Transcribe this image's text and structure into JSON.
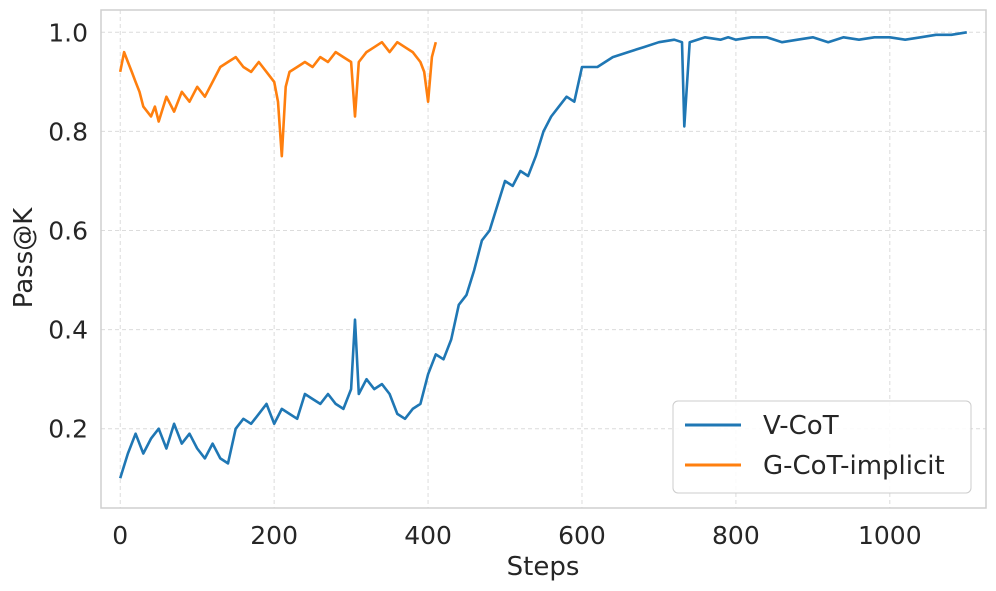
{
  "chart_data": {
    "type": "line",
    "title": "",
    "xlabel": "Steps",
    "ylabel": "Pass@K",
    "xlim": [
      -25,
      1125
    ],
    "ylim": [
      0.04,
      1.045
    ],
    "xticks": [
      0,
      200,
      400,
      600,
      800,
      1000
    ],
    "xtick_labels": [
      "0",
      "200",
      "400",
      "600",
      "800",
      "1000"
    ],
    "yticks": [
      0.2,
      0.4,
      0.6,
      0.8,
      1.0
    ],
    "ytick_labels": [
      "0.2",
      "0.4",
      "0.6",
      "0.8",
      "1.0"
    ],
    "grid": true,
    "legend_position": "lower-right",
    "colors": {
      "v_cot": "#1f77b4",
      "g_cot": "#ff7f0e"
    },
    "series": [
      {
        "name": "V-CoT",
        "color": "#1f77b4",
        "x": [
          0,
          10,
          20,
          30,
          40,
          50,
          60,
          70,
          80,
          90,
          100,
          110,
          120,
          130,
          140,
          150,
          160,
          170,
          180,
          190,
          200,
          210,
          220,
          230,
          240,
          250,
          260,
          270,
          280,
          290,
          300,
          305,
          310,
          320,
          330,
          340,
          350,
          360,
          370,
          380,
          390,
          400,
          410,
          420,
          430,
          440,
          450,
          460,
          470,
          480,
          490,
          500,
          510,
          520,
          530,
          540,
          550,
          560,
          570,
          580,
          590,
          600,
          620,
          640,
          660,
          680,
          700,
          720,
          730,
          733,
          740,
          760,
          780,
          790,
          800,
          820,
          840,
          860,
          880,
          900,
          920,
          940,
          960,
          980,
          1000,
          1020,
          1040,
          1060,
          1080,
          1100
        ],
        "values": [
          0.1,
          0.15,
          0.19,
          0.15,
          0.18,
          0.2,
          0.16,
          0.21,
          0.17,
          0.19,
          0.16,
          0.14,
          0.17,
          0.14,
          0.13,
          0.2,
          0.22,
          0.21,
          0.23,
          0.25,
          0.21,
          0.24,
          0.23,
          0.22,
          0.27,
          0.26,
          0.25,
          0.27,
          0.25,
          0.24,
          0.28,
          0.42,
          0.27,
          0.3,
          0.28,
          0.29,
          0.27,
          0.23,
          0.22,
          0.24,
          0.25,
          0.31,
          0.35,
          0.34,
          0.38,
          0.45,
          0.47,
          0.52,
          0.58,
          0.6,
          0.65,
          0.7,
          0.69,
          0.72,
          0.71,
          0.75,
          0.8,
          0.83,
          0.85,
          0.87,
          0.86,
          0.93,
          0.93,
          0.95,
          0.96,
          0.97,
          0.98,
          0.985,
          0.98,
          0.81,
          0.98,
          0.99,
          0.985,
          0.99,
          0.985,
          0.99,
          0.99,
          0.98,
          0.985,
          0.99,
          0.98,
          0.99,
          0.985,
          0.99,
          0.99,
          0.985,
          0.99,
          0.995,
          0.995,
          1.0
        ]
      },
      {
        "name": "G-CoT-implicit",
        "color": "#ff7f0e",
        "x": [
          0,
          5,
          10,
          15,
          20,
          25,
          30,
          35,
          40,
          45,
          50,
          60,
          70,
          80,
          90,
          100,
          110,
          120,
          130,
          140,
          150,
          160,
          170,
          180,
          190,
          200,
          205,
          210,
          215,
          220,
          230,
          240,
          250,
          260,
          270,
          280,
          290,
          300,
          305,
          310,
          320,
          330,
          340,
          350,
          360,
          370,
          380,
          390,
          395,
          400,
          405,
          410
        ],
        "values": [
          0.92,
          0.96,
          0.94,
          0.92,
          0.9,
          0.88,
          0.85,
          0.84,
          0.83,
          0.85,
          0.82,
          0.87,
          0.84,
          0.88,
          0.86,
          0.89,
          0.87,
          0.9,
          0.93,
          0.94,
          0.95,
          0.93,
          0.92,
          0.94,
          0.92,
          0.9,
          0.86,
          0.75,
          0.89,
          0.92,
          0.93,
          0.94,
          0.93,
          0.95,
          0.94,
          0.96,
          0.95,
          0.94,
          0.83,
          0.94,
          0.96,
          0.97,
          0.98,
          0.96,
          0.98,
          0.97,
          0.96,
          0.94,
          0.92,
          0.86,
          0.95,
          0.98
        ]
      }
    ]
  }
}
